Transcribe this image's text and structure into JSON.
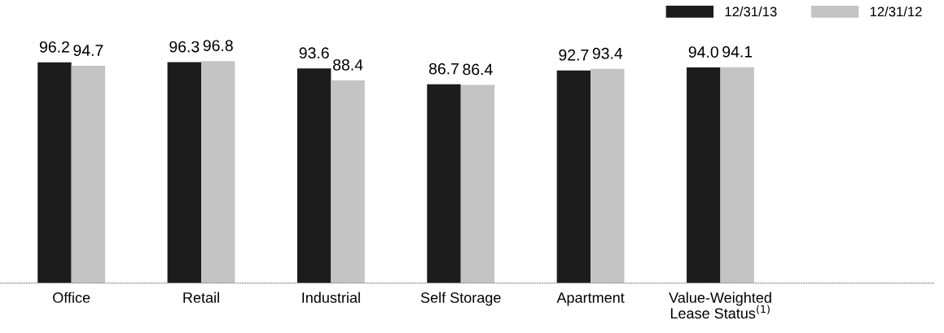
{
  "chart_data": {
    "type": "bar",
    "categories": [
      "Office",
      "Retail",
      "Industrial",
      "Self Storage",
      "Apartment",
      "Value-Weighted\nLease Status$^{(1)}$"
    ],
    "series": [
      {
        "name": "12/31/13",
        "color": "#1c1c1c",
        "values": [
          96.2,
          96.3,
          93.6,
          86.7,
          92.7,
          94.0
        ],
        "value_labels": [
          "96.2",
          "96.3",
          "93.6",
          "86.7",
          "92.7",
          "94.0"
        ]
      },
      {
        "name": "12/31/12",
        "color": "#c4c4c4",
        "values": [
          94.7,
          96.8,
          88.4,
          86.4,
          93.4,
          94.1
        ],
        "value_labels": [
          "94.7",
          "96.8",
          "88.4",
          "86.4",
          "93.4",
          "94.1"
        ]
      }
    ],
    "tick_labels": "x",
    "legend": "top right",
    "grid": false
  }
}
